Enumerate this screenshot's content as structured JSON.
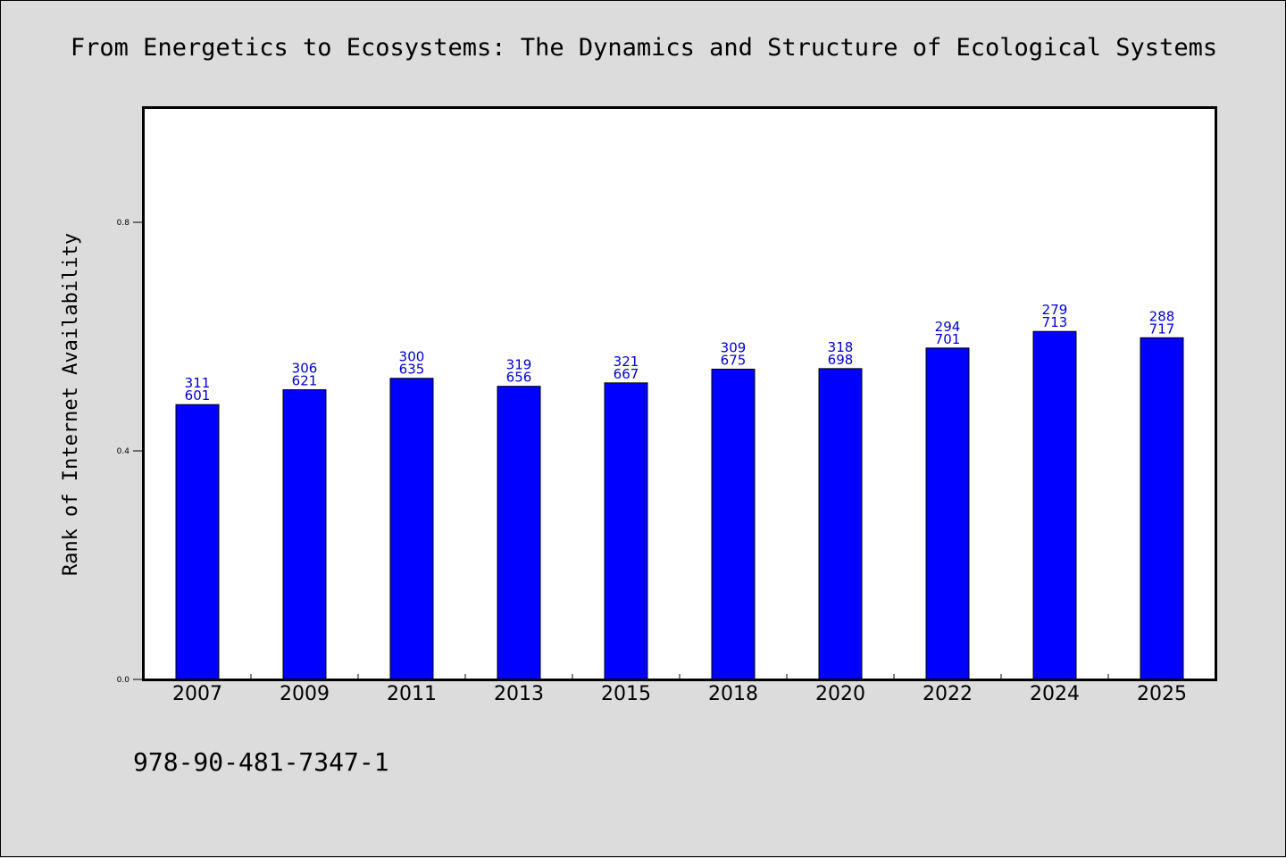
{
  "chart_data": {
    "type": "bar",
    "title": "From Energetics to Ecosystems: The Dynamics and Structure of Ecological Systems",
    "xlabel": "",
    "ylabel": "Rank of Internet Availability",
    "categories": [
      "2007",
      "2009",
      "2011",
      "2013",
      "2015",
      "2018",
      "2020",
      "2022",
      "2024",
      "2025"
    ],
    "values": [
      0.481,
      0.507,
      0.527,
      0.513,
      0.519,
      0.543,
      0.544,
      0.58,
      0.609,
      0.598
    ],
    "bar_labels_top": [
      "311",
      "306",
      "300",
      "319",
      "321",
      "309",
      "318",
      "294",
      "279",
      "288"
    ],
    "bar_labels_bottom": [
      "601",
      "621",
      "635",
      "656",
      "667",
      "675",
      "698",
      "701",
      "713",
      "717"
    ],
    "yticks": [
      0.0,
      0.4,
      0.8
    ],
    "ytick_labels": [
      "0.0",
      "0.4",
      "0.8"
    ],
    "ylim": [
      0,
      1.0
    ],
    "grid": false,
    "bar_color": "#0000ff",
    "label_color": "#0000cc"
  },
  "footer": {
    "isbn": "978-90-481-7347-1"
  }
}
